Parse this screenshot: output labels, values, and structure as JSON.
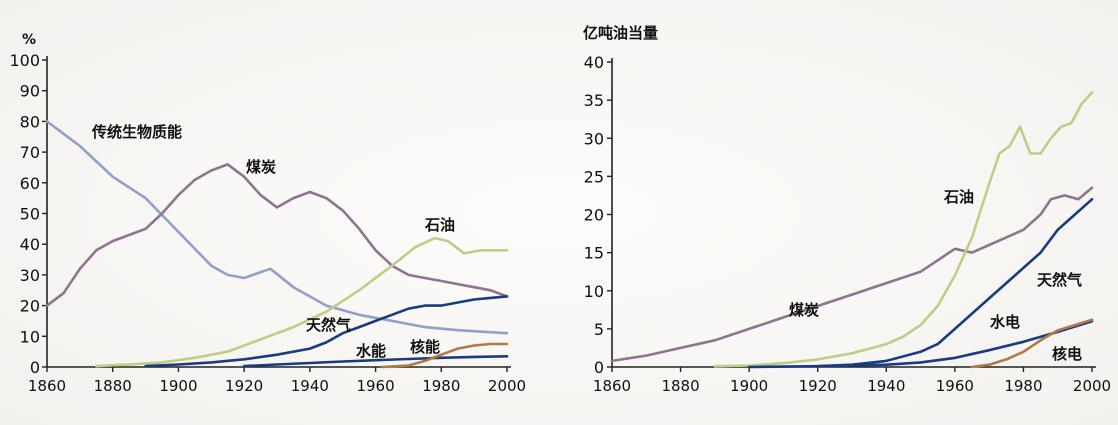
{
  "colors": {
    "purple": "#8f7390",
    "blue": "#8fa0cc",
    "green": "#bccf86",
    "navy": "#1a3a84",
    "brown": "#b07a45"
  },
  "chart_data": [
    {
      "type": "line",
      "ylabel": "%",
      "xlim": [
        1860,
        2000
      ],
      "ylim": [
        0,
        100
      ],
      "x_ticks": [
        1860,
        1880,
        1900,
        1920,
        1940,
        1960,
        1980,
        2000
      ],
      "y_ticks": [
        0,
        10,
        20,
        30,
        40,
        50,
        60,
        70,
        80,
        90,
        100
      ],
      "series": [
        {
          "name": "传统生物质能",
          "color": "#8fa0cc",
          "points": [
            [
              1860,
              80
            ],
            [
              1870,
              72
            ],
            [
              1880,
              62
            ],
            [
              1890,
              55
            ],
            [
              1900,
              44
            ],
            [
              1910,
              33
            ],
            [
              1915,
              30
            ],
            [
              1920,
              29
            ],
            [
              1928,
              32
            ],
            [
              1935,
              26
            ],
            [
              1945,
              20
            ],
            [
              1955,
              17
            ],
            [
              1965,
              15
            ],
            [
              1975,
              13
            ],
            [
              1985,
              12
            ],
            [
              2000,
              11
            ]
          ]
        },
        {
          "name": "煤炭",
          "color": "#8f7390",
          "points": [
            [
              1860,
              20
            ],
            [
              1865,
              24
            ],
            [
              1870,
              32
            ],
            [
              1875,
              38
            ],
            [
              1880,
              41
            ],
            [
              1885,
              43
            ],
            [
              1890,
              45
            ],
            [
              1895,
              50
            ],
            [
              1900,
              56
            ],
            [
              1905,
              61
            ],
            [
              1910,
              64
            ],
            [
              1915,
              66
            ],
            [
              1920,
              62
            ],
            [
              1925,
              56
            ],
            [
              1930,
              52
            ],
            [
              1935,
              55
            ],
            [
              1940,
              57
            ],
            [
              1945,
              55
            ],
            [
              1950,
              51
            ],
            [
              1955,
              45
            ],
            [
              1960,
              38
            ],
            [
              1965,
              33
            ],
            [
              1970,
              30
            ],
            [
              1975,
              29
            ],
            [
              1980,
              28
            ],
            [
              1985,
              27
            ],
            [
              1990,
              26
            ],
            [
              1995,
              25
            ],
            [
              2000,
              23
            ]
          ]
        },
        {
          "name": "石油",
          "color": "#bccf86",
          "points": [
            [
              1875,
              0.3
            ],
            [
              1885,
              0.8
            ],
            [
              1895,
              1.5
            ],
            [
              1905,
              3
            ],
            [
              1915,
              5
            ],
            [
              1925,
              9
            ],
            [
              1935,
              13
            ],
            [
              1945,
              18
            ],
            [
              1955,
              25
            ],
            [
              1965,
              33
            ],
            [
              1972,
              39
            ],
            [
              1978,
              42
            ],
            [
              1982,
              41
            ],
            [
              1987,
              37
            ],
            [
              1992,
              38
            ],
            [
              2000,
              38
            ]
          ]
        },
        {
          "name": "天然气",
          "color": "#1a3a84",
          "points": [
            [
              1890,
              0.3
            ],
            [
              1900,
              0.8
            ],
            [
              1910,
              1.5
            ],
            [
              1920,
              2.5
            ],
            [
              1930,
              4
            ],
            [
              1940,
              6
            ],
            [
              1945,
              8
            ],
            [
              1950,
              11
            ],
            [
              1955,
              13
            ],
            [
              1960,
              15
            ],
            [
              1965,
              17
            ],
            [
              1970,
              19
            ],
            [
              1975,
              20
            ],
            [
              1980,
              20
            ],
            [
              1985,
              21
            ],
            [
              1990,
              22
            ],
            [
              1995,
              22.5
            ],
            [
              2000,
              23
            ]
          ]
        },
        {
          "name": "水能",
          "color": "#1a3a84",
          "points": [
            [
              1920,
              0.3
            ],
            [
              1930,
              0.8
            ],
            [
              1940,
              1.3
            ],
            [
              1950,
              1.8
            ],
            [
              1960,
              2.2
            ],
            [
              1970,
              2.6
            ],
            [
              1980,
              3
            ],
            [
              1990,
              3.3
            ],
            [
              2000,
              3.5
            ]
          ]
        },
        {
          "name": "核能",
          "color": "#b07a45",
          "points": [
            [
              1962,
              0
            ],
            [
              1970,
              0.5
            ],
            [
              1975,
              2
            ],
            [
              1980,
              4
            ],
            [
              1985,
              6
            ],
            [
              1990,
              7
            ],
            [
              1995,
              7.5
            ],
            [
              2000,
              7.5
            ]
          ]
        }
      ],
      "labels": [
        {
          "text": "传统生物质能"
        },
        {
          "text": "煤炭"
        },
        {
          "text": "石油"
        },
        {
          "text": "天然气"
        },
        {
          "text": "水能"
        },
        {
          "text": "核能"
        }
      ]
    },
    {
      "type": "line",
      "ylabel": "亿吨油当量",
      "xlim": [
        1860,
        2000
      ],
      "ylim": [
        0,
        40
      ],
      "x_ticks": [
        1860,
        1880,
        1900,
        1920,
        1940,
        1960,
        1980,
        2000
      ],
      "y_ticks": [
        0,
        5,
        10,
        15,
        20,
        25,
        30,
        35,
        40
      ],
      "series": [
        {
          "name": "煤炭",
          "color": "#8f7390",
          "points": [
            [
              1860,
              0.8
            ],
            [
              1870,
              1.5
            ],
            [
              1880,
              2.5
            ],
            [
              1890,
              3.5
            ],
            [
              1900,
              5
            ],
            [
              1910,
              6.5
            ],
            [
              1920,
              8
            ],
            [
              1930,
              9.5
            ],
            [
              1940,
              11
            ],
            [
              1950,
              12.5
            ],
            [
              1955,
              14
            ],
            [
              1960,
              15.5
            ],
            [
              1965,
              15
            ],
            [
              1970,
              16
            ],
            [
              1975,
              17
            ],
            [
              1980,
              18
            ],
            [
              1985,
              20
            ],
            [
              1988,
              22
            ],
            [
              1992,
              22.5
            ],
            [
              1996,
              22
            ],
            [
              2000,
              23.5
            ]
          ]
        },
        {
          "name": "石油",
          "color": "#bccf86",
          "points": [
            [
              1890,
              0.1
            ],
            [
              1900,
              0.2
            ],
            [
              1910,
              0.5
            ],
            [
              1920,
              1
            ],
            [
              1930,
              1.8
            ],
            [
              1940,
              3
            ],
            [
              1945,
              4
            ],
            [
              1950,
              5.5
            ],
            [
              1955,
              8
            ],
            [
              1960,
              12
            ],
            [
              1965,
              17
            ],
            [
              1970,
              24
            ],
            [
              1973,
              28
            ],
            [
              1976,
              29
            ],
            [
              1979,
              31.5
            ],
            [
              1982,
              28
            ],
            [
              1985,
              28
            ],
            [
              1988,
              30
            ],
            [
              1991,
              31.5
            ],
            [
              1994,
              32
            ],
            [
              1997,
              34.5
            ],
            [
              2000,
              36
            ]
          ]
        },
        {
          "name": "天然气",
          "color": "#1a3a84",
          "points": [
            [
              1920,
              0.1
            ],
            [
              1930,
              0.3
            ],
            [
              1940,
              0.8
            ],
            [
              1950,
              2
            ],
            [
              1955,
              3
            ],
            [
              1960,
              5
            ],
            [
              1965,
              7
            ],
            [
              1970,
              9
            ],
            [
              1975,
              11
            ],
            [
              1980,
              13
            ],
            [
              1985,
              15
            ],
            [
              1990,
              18
            ],
            [
              1995,
              20
            ],
            [
              2000,
              22
            ]
          ]
        },
        {
          "name": "水电",
          "color": "#1a3a84",
          "points": [
            [
              1900,
              0
            ],
            [
              1920,
              0.1
            ],
            [
              1940,
              0.3
            ],
            [
              1950,
              0.6
            ],
            [
              1960,
              1.2
            ],
            [
              1970,
              2.2
            ],
            [
              1980,
              3.3
            ],
            [
              1990,
              4.6
            ],
            [
              2000,
              6
            ]
          ]
        },
        {
          "name": "核电",
          "color": "#b07a45",
          "points": [
            [
              1965,
              0
            ],
            [
              1970,
              0.3
            ],
            [
              1975,
              1
            ],
            [
              1980,
              2
            ],
            [
              1985,
              3.5
            ],
            [
              1990,
              4.8
            ],
            [
              1995,
              5.5
            ],
            [
              2000,
              6.2
            ]
          ]
        }
      ],
      "labels": [
        {
          "text": "石油"
        },
        {
          "text": "煤炭"
        },
        {
          "text": "天然气"
        },
        {
          "text": "水电"
        },
        {
          "text": "核电"
        }
      ]
    }
  ]
}
